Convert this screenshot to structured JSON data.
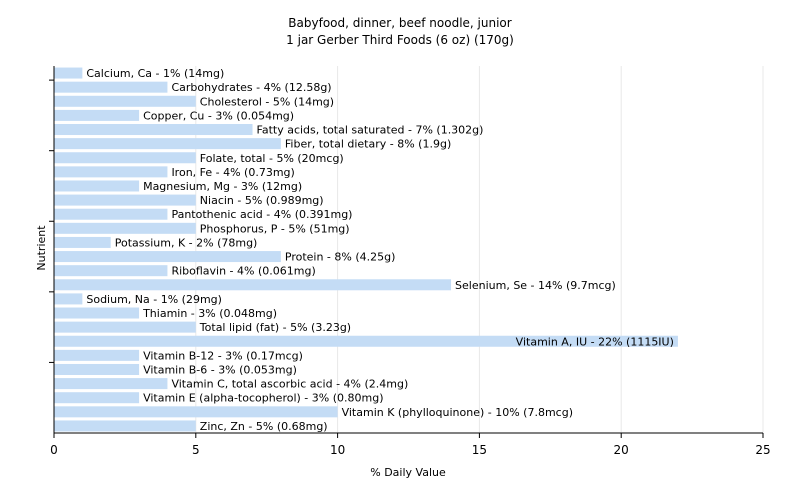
{
  "chart_data": {
    "type": "bar",
    "orientation": "horizontal",
    "title": "Babyfood, dinner, beef noodle, junior",
    "subtitle": "1 jar Gerber Third Foods (6 oz) (170g)",
    "xlabel": "% Daily Value",
    "ylabel": "Nutrient",
    "xlim": [
      0,
      25
    ],
    "xticks": [
      0,
      5,
      10,
      15,
      20,
      25
    ],
    "grid": "vertical",
    "bar_color": "#c4dcf5",
    "categories": [
      "Calcium, Ca",
      "Carbohydrates",
      "Cholesterol",
      "Copper, Cu",
      "Fatty acids, total saturated",
      "Fiber, total dietary",
      "Folate, total",
      "Iron, Fe",
      "Magnesium, Mg",
      "Niacin",
      "Pantothenic acid",
      "Phosphorus, P",
      "Potassium, K",
      "Protein",
      "Riboflavin",
      "Selenium, Se",
      "Sodium, Na",
      "Thiamin",
      "Total lipid (fat)",
      "Vitamin A, IU",
      "Vitamin B-12",
      "Vitamin B-6",
      "Vitamin C, total ascorbic acid",
      "Vitamin E (alpha-tocopherol)",
      "Vitamin K (phylloquinone)",
      "Zinc, Zn"
    ],
    "values": [
      1,
      4,
      5,
      3,
      7,
      8,
      5,
      4,
      3,
      5,
      4,
      5,
      2,
      8,
      4,
      14,
      1,
      3,
      5,
      22,
      3,
      3,
      4,
      3,
      10,
      5
    ],
    "labels": [
      "Calcium, Ca - 1% (14mg)",
      "Carbohydrates - 4% (12.58g)",
      "Cholesterol - 5% (14mg)",
      "Copper, Cu - 3% (0.054mg)",
      "Fatty acids, total saturated - 7% (1.302g)",
      "Fiber, total dietary - 8% (1.9g)",
      "Folate, total - 5% (20mcg)",
      "Iron, Fe - 4% (0.73mg)",
      "Magnesium, Mg - 3% (12mg)",
      "Niacin - 5% (0.989mg)",
      "Pantothenic acid - 4% (0.391mg)",
      "Phosphorus, P - 5% (51mg)",
      "Potassium, K - 2% (78mg)",
      "Protein - 8% (4.25g)",
      "Riboflavin - 4% (0.061mg)",
      "Selenium, Se - 14% (9.7mcg)",
      "Sodium, Na - 1% (29mg)",
      "Thiamin - 3% (0.048mg)",
      "Total lipid (fat) - 5% (3.23g)",
      "Vitamin A, IU - 22% (1115IU)",
      "Vitamin B-12 - 3% (0.17mcg)",
      "Vitamin B-6 - 3% (0.053mg)",
      "Vitamin C, total ascorbic acid - 4% (2.4mg)",
      "Vitamin E (alpha-tocopherol) - 3% (0.80mg)",
      "Vitamin K (phylloquinone) - 10% (7.8mcg)",
      "Zinc, Zn - 5% (0.68mg)"
    ]
  }
}
